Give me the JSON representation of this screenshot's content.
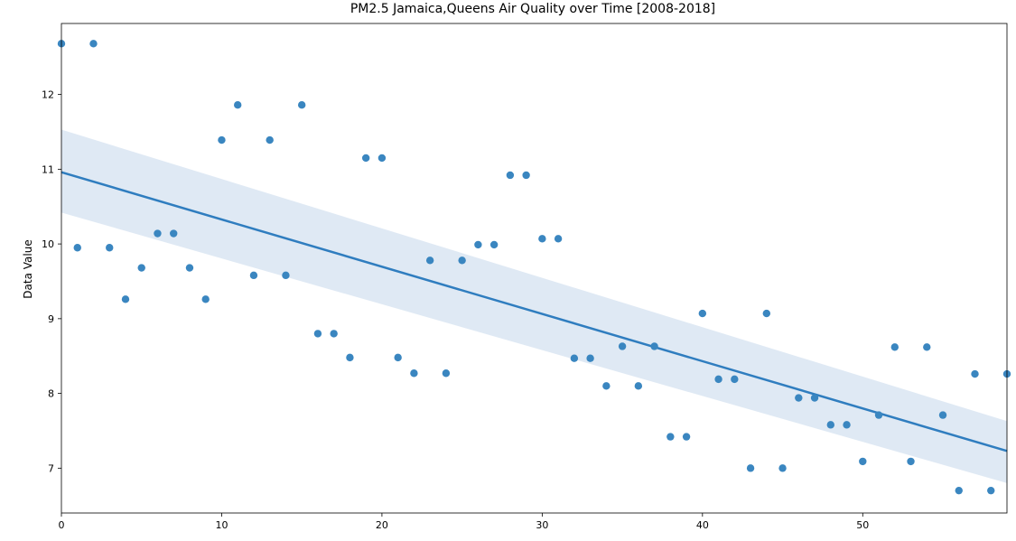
{
  "chart_data": {
    "type": "scatter",
    "title": "PM2.5 Jamaica,Queens Air Quality over Time [2008-2018]",
    "xlabel": "",
    "ylabel": "Data Value",
    "xlim": [
      0,
      59
    ],
    "ylim": [
      6.4,
      12.95
    ],
    "xticks": [
      0,
      10,
      20,
      30,
      40,
      50
    ],
    "yticks": [
      7,
      8,
      9,
      10,
      11,
      12
    ],
    "grid": false,
    "point_color": "#3a86c0",
    "regression": {
      "x": [
        0,
        59
      ],
      "y": [
        10.96,
        7.23
      ],
      "ci_lower": [
        10.42,
        6.8
      ],
      "ci_upper": [
        11.53,
        7.63
      ],
      "line_color": "#2f7dbf",
      "band_color": "#dde8f3"
    },
    "series": [
      {
        "x": [
          0,
          1,
          2,
          3,
          4,
          5,
          6,
          7,
          8,
          9,
          10,
          11,
          12,
          13,
          14,
          15,
          16,
          17,
          18,
          19,
          20,
          21,
          22,
          23,
          24,
          25,
          26,
          27,
          28,
          29,
          30,
          31,
          32,
          33,
          34,
          35,
          36,
          37,
          38,
          39,
          40,
          41,
          42,
          43,
          44,
          45,
          46,
          47,
          48,
          49,
          50,
          51,
          52,
          53,
          54,
          55,
          56,
          57,
          58,
          59
        ],
        "y": [
          12.68,
          9.95,
          12.68,
          9.95,
          9.26,
          9.68,
          10.14,
          10.14,
          9.68,
          9.26,
          11.39,
          11.86,
          9.58,
          11.39,
          9.58,
          11.86,
          8.8,
          8.8,
          8.48,
          11.15,
          11.15,
          8.48,
          8.27,
          9.78,
          8.27,
          9.78,
          9.99,
          9.99,
          10.92,
          10.92,
          10.07,
          10.07,
          8.47,
          8.47,
          8.1,
          8.63,
          8.1,
          8.63,
          7.42,
          7.42,
          9.07,
          8.19,
          8.19,
          7.0,
          9.07,
          7.0,
          7.94,
          7.94,
          7.58,
          7.58,
          7.09,
          7.71,
          8.62,
          7.09,
          8.62,
          7.71,
          6.7,
          8.26,
          6.7,
          8.26
        ]
      }
    ]
  }
}
